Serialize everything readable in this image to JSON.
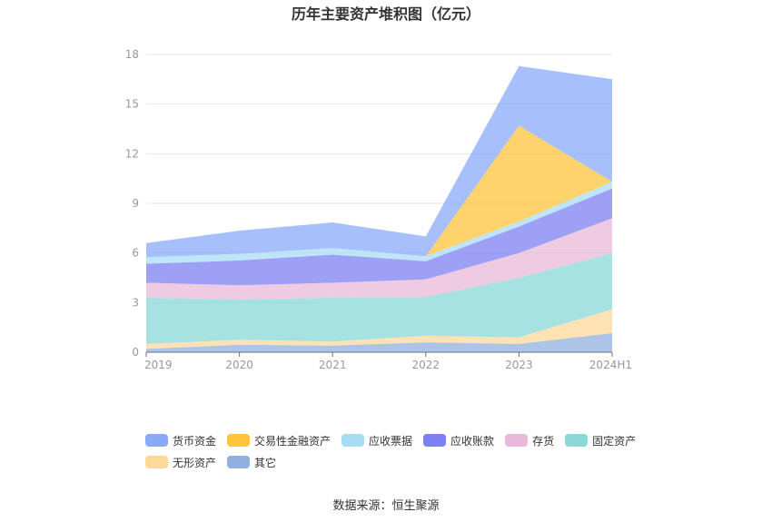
{
  "chart_data": {
    "type": "area",
    "stacked": true,
    "title": "历年主要资产堆积图（亿元）",
    "categories": [
      "2019",
      "2020",
      "2021",
      "2022",
      "2023",
      "2024H1"
    ],
    "ylim": [
      0,
      18
    ],
    "yticks": [
      "0",
      "3",
      "6",
      "9",
      "12",
      "15",
      "18"
    ],
    "grid": true,
    "legend_position": "bottom",
    "series": [
      {
        "name": "其它",
        "color": "#8fb0e0",
        "values": [
          0.2,
          0.45,
          0.4,
          0.6,
          0.5,
          1.15
        ]
      },
      {
        "name": "无形资产",
        "color": "#fdd89a",
        "values": [
          0.3,
          0.3,
          0.25,
          0.4,
          0.4,
          1.45
        ]
      },
      {
        "name": "固定资产",
        "color": "#8ad8d8",
        "values": [
          2.8,
          2.45,
          2.65,
          2.35,
          3.6,
          3.4
        ]
      },
      {
        "name": "存货",
        "color": "#eab9da",
        "values": [
          0.9,
          0.85,
          0.9,
          1.05,
          1.5,
          2.1
        ]
      },
      {
        "name": "应收账款",
        "color": "#7d80f2",
        "values": [
          1.15,
          1.5,
          1.7,
          1.1,
          1.6,
          1.8
        ]
      },
      {
        "name": "应收票据",
        "color": "#a8dcf5",
        "values": [
          0.4,
          0.4,
          0.4,
          0.3,
          0.3,
          0.4
        ]
      },
      {
        "name": "交易性金融资产",
        "color": "#fdc43c",
        "values": [
          0.0,
          0.0,
          0.0,
          0.0,
          5.8,
          0.0
        ]
      },
      {
        "name": "货币资金",
        "color": "#8aaaf8",
        "values": [
          0.85,
          1.4,
          1.55,
          1.2,
          3.6,
          6.2
        ]
      }
    ],
    "legend_rows": [
      [
        "货币资金",
        "交易性金融资产",
        "应收票据",
        "应收账款",
        "存货",
        "固定资产"
      ],
      [
        "无形资产",
        "其它"
      ]
    ]
  },
  "source_text": "数据来源：恒生聚源"
}
